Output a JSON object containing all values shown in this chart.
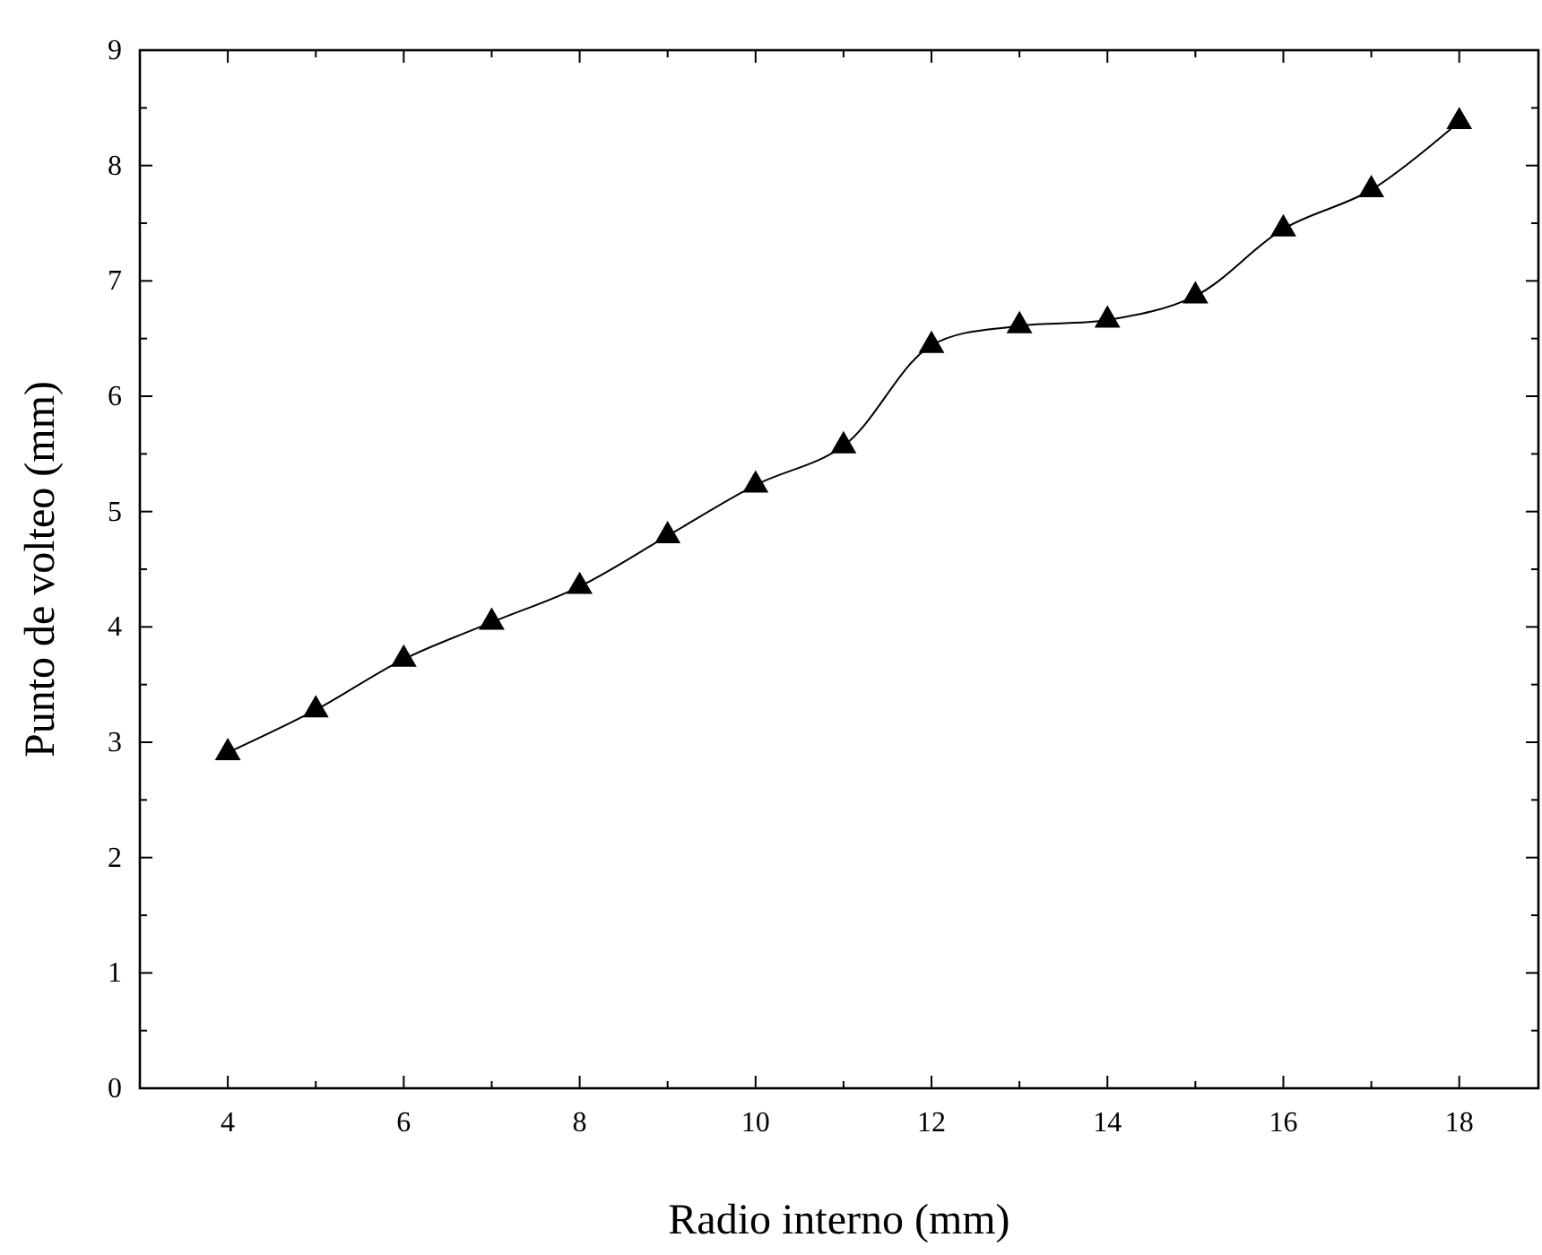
{
  "chart_data": {
    "type": "line",
    "xlabel": "Radio interno (mm)",
    "ylabel": "Punto de volteo (mm)",
    "x": [
      4,
      5,
      6,
      7,
      8,
      9,
      10,
      11,
      12,
      13,
      14,
      15,
      16,
      17,
      18
    ],
    "series": [
      {
        "color": "#000000",
        "values": [
          2.91,
          3.28,
          3.72,
          4.04,
          4.35,
          4.79,
          5.23,
          5.57,
          6.44,
          6.61,
          6.66,
          6.87,
          7.45,
          7.79,
          8.38
        ]
      }
    ],
    "xlim": [
      3,
      18.9
    ],
    "ylim": [
      0,
      9
    ],
    "xticks": [
      4,
      6,
      8,
      10,
      12,
      14,
      16,
      18
    ],
    "yticks": [
      0,
      1,
      2,
      3,
      4,
      5,
      6,
      7,
      8,
      9
    ],
    "marker": "triangle",
    "line_style": "solid",
    "grid": false
  }
}
